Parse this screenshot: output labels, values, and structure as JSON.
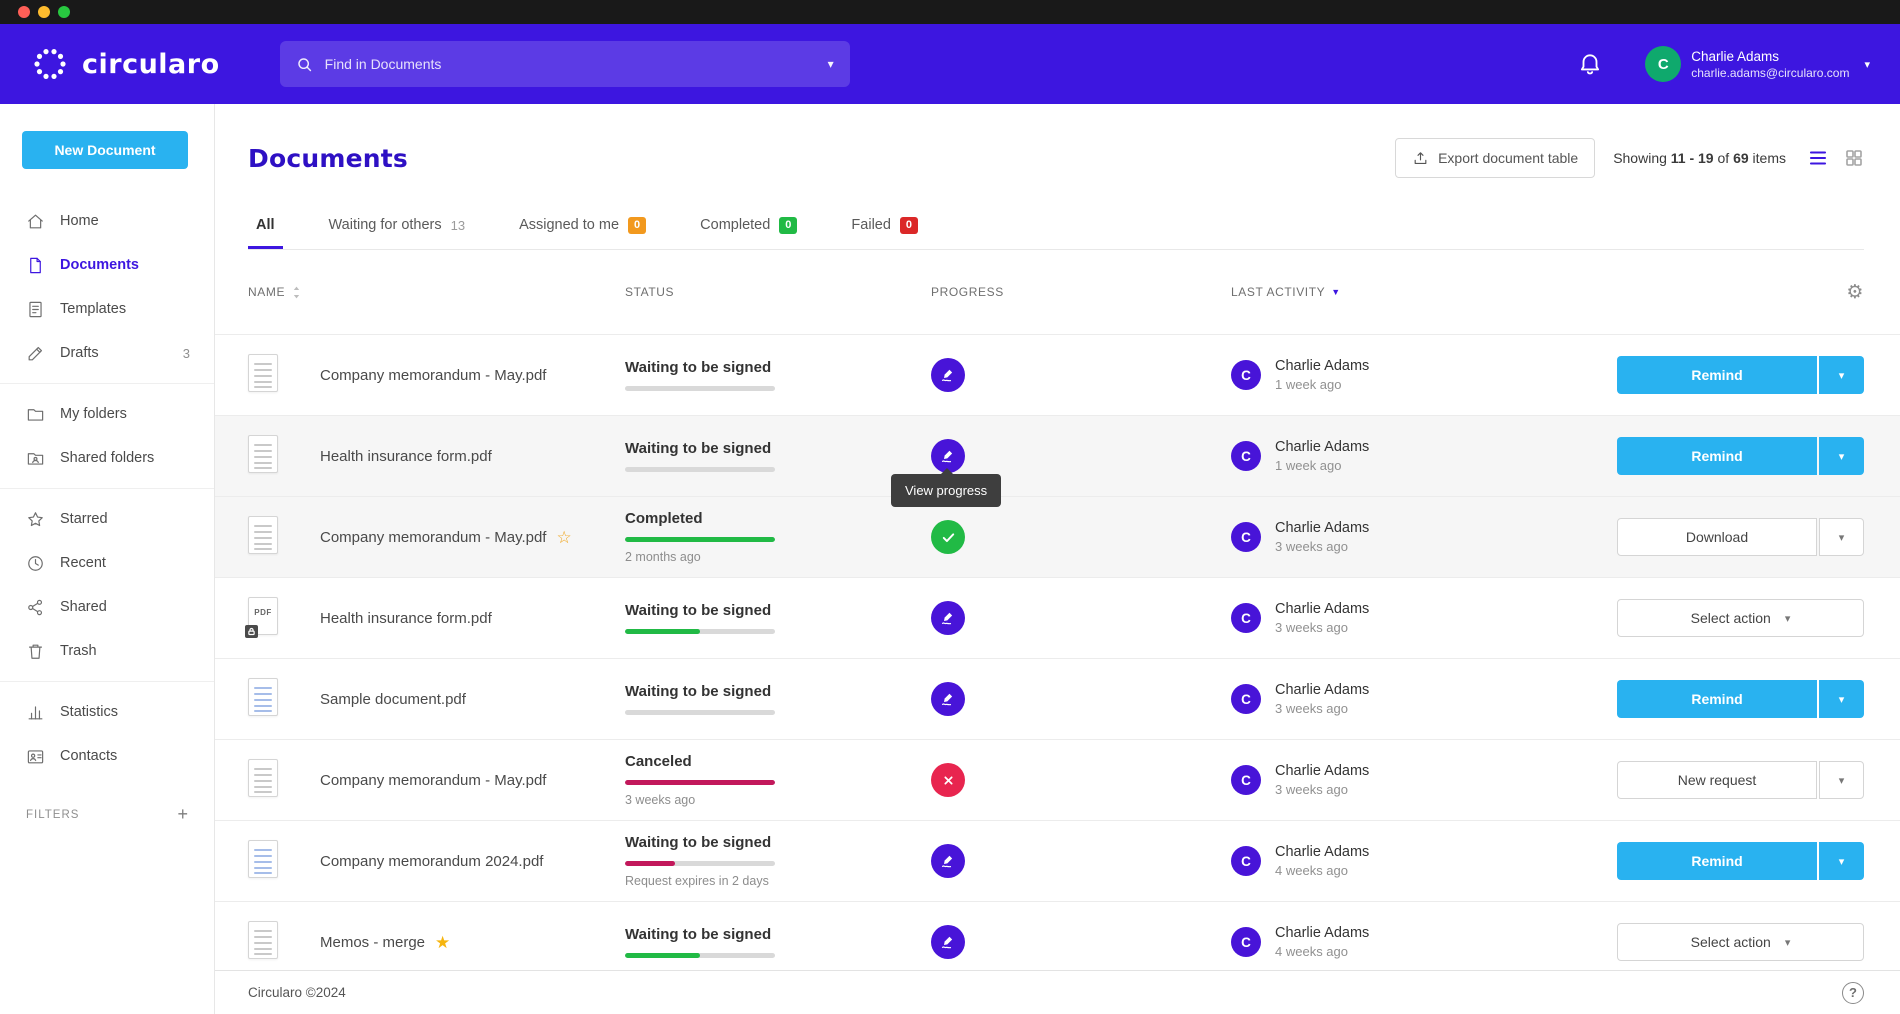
{
  "header": {
    "logo": "circularo",
    "search": {
      "placeholder": "Find in Documents"
    },
    "user": {
      "initial": "C",
      "name": "Charlie Adams",
      "email": "charlie.adams@circularo.com"
    }
  },
  "sidebar": {
    "new_document": "New Document",
    "items": [
      {
        "label": "Home",
        "icon": "home",
        "group": 0
      },
      {
        "label": "Documents",
        "icon": "document",
        "group": 0,
        "active": true
      },
      {
        "label": "Templates",
        "icon": "template",
        "group": 0
      },
      {
        "label": "Drafts",
        "icon": "edit",
        "group": 0,
        "count": "3"
      },
      {
        "label": "My folders",
        "icon": "folder",
        "group": 1
      },
      {
        "label": "Shared folders",
        "icon": "folder-shared",
        "group": 1
      },
      {
        "label": "Starred",
        "icon": "star",
        "group": 2
      },
      {
        "label": "Recent",
        "icon": "clock",
        "group": 2
      },
      {
        "label": "Shared",
        "icon": "share",
        "group": 2
      },
      {
        "label": "Trash",
        "icon": "trash",
        "group": 2
      },
      {
        "label": "Statistics",
        "icon": "stats",
        "group": 3
      },
      {
        "label": "Contacts",
        "icon": "contacts",
        "group": 3
      }
    ],
    "filters": {
      "label": "FILTERS",
      "add": "+"
    }
  },
  "main": {
    "title": "Documents",
    "export_button": "Export document table",
    "showing": {
      "word1": "Showing",
      "range": "11 - 19",
      "word2": "of",
      "total": "69",
      "word3": "items"
    },
    "tabs": [
      {
        "label": "All",
        "active": true
      },
      {
        "label": "Waiting for others",
        "count": "13",
        "count_style": "plain"
      },
      {
        "label": "Assigned to me",
        "count": "0",
        "count_style": "orange"
      },
      {
        "label": "Completed",
        "count": "0",
        "count_style": "green"
      },
      {
        "label": "Failed",
        "count": "0",
        "count_style": "red"
      }
    ],
    "columns": {
      "name": "NAME",
      "status": "STATUS",
      "progress": "PROGRESS",
      "last_activity": "LAST ACTIVITY"
    },
    "tooltip": "View progress",
    "rows": [
      {
        "name": "Company memorandum - May.pdf",
        "doc_icon": "lines",
        "status": "Waiting to be signed",
        "bar": {
          "pct": 0,
          "color": "gray"
        },
        "progress_icon": "signature",
        "actor": {
          "initial": "C",
          "name": "Charlie Adams"
        },
        "when": "1 week ago",
        "action": {
          "label": "Remind",
          "type": "primary-split"
        }
      },
      {
        "name": "Health insurance form.pdf",
        "doc_icon": "lines",
        "status": "Waiting to be signed",
        "bar": {
          "pct": 0,
          "color": "gray"
        },
        "progress_icon": "signature",
        "actor": {
          "initial": "C",
          "name": "Charlie Adams"
        },
        "when": "1 week ago",
        "action": {
          "label": "Remind",
          "type": "primary-split"
        },
        "shaded": true
      },
      {
        "name": "Company memorandum - May.pdf",
        "star": "outline",
        "doc_icon": "lines",
        "status": "Completed",
        "status_sub": "2 months ago",
        "bar": {
          "pct": 100,
          "color": "green"
        },
        "progress_icon": "check",
        "actor": {
          "initial": "C",
          "name": "Charlie Adams"
        },
        "when": "3 weeks ago",
        "action": {
          "label": "Download",
          "type": "default-split"
        },
        "shaded": true
      },
      {
        "name": "Health insurance form.pdf",
        "doc_icon": "pdf-lock",
        "status": "Waiting to be signed",
        "bar": {
          "pct": 50,
          "color": "green"
        },
        "progress_icon": "signature",
        "actor": {
          "initial": "C",
          "name": "Charlie Adams"
        },
        "when": "3 weeks ago",
        "action": {
          "label": "Select action",
          "type": "select"
        }
      },
      {
        "name": "Sample document.pdf",
        "doc_icon": "blue",
        "status": "Waiting to be signed",
        "bar": {
          "pct": 0,
          "color": "gray"
        },
        "progress_icon": "signature",
        "actor": {
          "initial": "C",
          "name": "Charlie Adams"
        },
        "when": "3 weeks ago",
        "action": {
          "label": "Remind",
          "type": "primary-split"
        }
      },
      {
        "name": "Company memorandum - May.pdf",
        "doc_icon": "lines",
        "status": "Canceled",
        "status_sub": "3 weeks ago",
        "bar": {
          "pct": 100,
          "color": "crimson"
        },
        "progress_icon": "cross",
        "actor": {
          "initial": "C",
          "name": "Charlie Adams"
        },
        "when": "3 weeks ago",
        "action": {
          "label": "New request",
          "type": "default-split"
        }
      },
      {
        "name": "Company memorandum 2024.pdf",
        "doc_icon": "blue",
        "status": "Waiting to be signed",
        "status_sub": "Request expires in 2 days",
        "bar": {
          "pct": 33,
          "color": "crimson"
        },
        "progress_icon": "signature",
        "actor": {
          "initial": "C",
          "name": "Charlie Adams"
        },
        "when": "4 weeks ago",
        "action": {
          "label": "Remind",
          "type": "primary-split"
        }
      },
      {
        "name": "Memos - merge",
        "star": "filled",
        "doc_icon": "lines",
        "status": "Waiting to be signed",
        "bar": {
          "pct": 50,
          "color": "green"
        },
        "progress_icon": "signature",
        "actor": {
          "initial": "C",
          "name": "Charlie Adams"
        },
        "when": "4 weeks ago",
        "action": {
          "label": "Select action",
          "type": "select"
        }
      }
    ]
  },
  "footer": {
    "copyright": "Circularo ©2024",
    "help": "?"
  }
}
